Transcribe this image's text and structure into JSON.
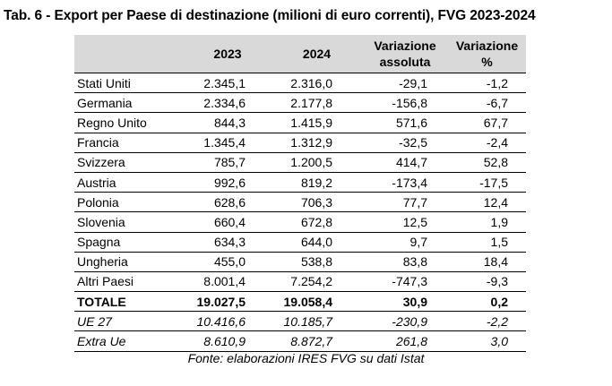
{
  "title": "Tab. 6 - Export per Paese di destinazione (milioni di euro correnti), FVG 2023-2024",
  "headers": {
    "country": "",
    "y2023": "2023",
    "y2024": "2024",
    "abs_line1": "Variazione",
    "abs_line2": "assoluta",
    "pct_line1": "Variazione",
    "pct_line2": "%"
  },
  "rows": [
    {
      "country": "Stati Uniti",
      "v2023": "2.345,1",
      "v2024": "2.316,0",
      "abs": "-29,1",
      "pct": "-1,2"
    },
    {
      "country": "Germania",
      "v2023": "2.334,6",
      "v2024": "2.177,8",
      "abs": "-156,8",
      "pct": "-6,7"
    },
    {
      "country": "Regno Unito",
      "v2023": "844,3",
      "v2024": "1.415,9",
      "abs": "571,6",
      "pct": "67,7"
    },
    {
      "country": "Francia",
      "v2023": "1.345,4",
      "v2024": "1.312,9",
      "abs": "-32,5",
      "pct": "-2,4"
    },
    {
      "country": "Svizzera",
      "v2023": "785,7",
      "v2024": "1.200,5",
      "abs": "414,7",
      "pct": "52,8"
    },
    {
      "country": "Austria",
      "v2023": "992,6",
      "v2024": "819,2",
      "abs": "-173,4",
      "pct": "-17,5"
    },
    {
      "country": "Polonia",
      "v2023": "628,6",
      "v2024": "706,3",
      "abs": "77,7",
      "pct": "12,4"
    },
    {
      "country": "Slovenia",
      "v2023": "660,4",
      "v2024": "672,8",
      "abs": "12,5",
      "pct": "1,9"
    },
    {
      "country": "Spagna",
      "v2023": "634,3",
      "v2024": "644,0",
      "abs": "9,7",
      "pct": "1,5"
    },
    {
      "country": "Ungheria",
      "v2023": "455,0",
      "v2024": "538,8",
      "abs": "83,8",
      "pct": "18,4"
    },
    {
      "country": "Altri Paesi",
      "v2023": "8.001,4",
      "v2024": "7.254,2",
      "abs": "-747,3",
      "pct": "-9,3"
    }
  ],
  "total": {
    "country": "TOTALE",
    "v2023": "19.027,5",
    "v2024": "19.058,4",
    "abs": "30,9",
    "pct": "0,2"
  },
  "areas": [
    {
      "country": "UE 27",
      "v2023": "10.416,6",
      "v2024": "10.185,7",
      "abs": "-230,9",
      "pct": "-2,2"
    },
    {
      "country": "Extra Ue",
      "v2023": "8.610,9",
      "v2024": "8.872,7",
      "abs": "261,8",
      "pct": "3,0"
    }
  ],
  "source": "Fonte: elaborazioni IRES FVG su dati Istat"
}
